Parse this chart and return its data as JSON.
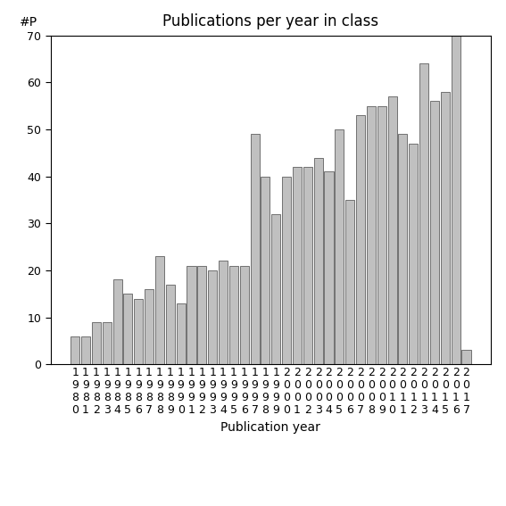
{
  "title": "Publications per year in class",
  "xlabel": "Publication year",
  "ylabel": "#P",
  "years": [
    1980,
    1981,
    1982,
    1983,
    1984,
    1985,
    1986,
    1987,
    1988,
    1989,
    1990,
    1991,
    1992,
    1993,
    1994,
    1995,
    1996,
    1997,
    1998,
    1999,
    2000,
    2001,
    2002,
    2003,
    2004,
    2005,
    2006,
    2007,
    2008,
    2009,
    2010,
    2011,
    2012,
    2013,
    2014,
    2015,
    2016,
    2017
  ],
  "values": [
    6,
    6,
    9,
    9,
    18,
    15,
    14,
    16,
    23,
    17,
    13,
    21,
    21,
    20,
    22,
    21,
    21,
    49,
    40,
    32,
    40,
    42,
    42,
    44,
    41,
    50,
    35,
    53,
    55,
    55,
    57,
    49,
    47,
    64,
    56,
    58,
    70,
    3
  ],
  "bar_color": "#c0c0c0",
  "bar_edgecolor": "#606060",
  "ylim": [
    0,
    70
  ],
  "yticks": [
    0,
    10,
    20,
    30,
    40,
    50,
    60,
    70
  ],
  "background_color": "#ffffff",
  "title_fontsize": 12,
  "axis_label_fontsize": 10,
  "tick_fontsize": 9
}
